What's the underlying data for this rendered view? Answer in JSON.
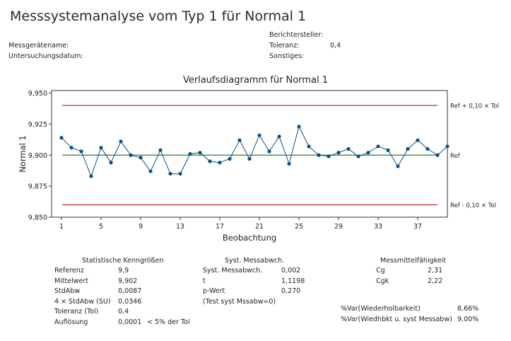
{
  "report": {
    "title": "Messsystemanalyse vom Typ 1 für Normal 1",
    "fields": {
      "messgeraet": "Messgerätename:",
      "datum": "Untersuchungsdatum:",
      "berichtersteller": "Berichtersteller:",
      "toleranz_label": "Toleranz:",
      "toleranz_value": "0,4",
      "sonstiges": "Sonstiges:"
    }
  },
  "chart_data": {
    "type": "line",
    "title": "Verlaufsdiagramm für Normal 1",
    "xlabel": "Beobachtung",
    "ylabel": "Normal 1",
    "xlim": [
      0,
      40
    ],
    "ylim": [
      9.85,
      9.952
    ],
    "x_ticks": [
      1,
      5,
      9,
      13,
      17,
      21,
      25,
      29,
      33,
      37
    ],
    "y_ticks": [
      {
        "value": 9.85,
        "label": "9,850"
      },
      {
        "value": 9.875,
        "label": "9,875"
      },
      {
        "value": 9.9,
        "label": "9,900"
      },
      {
        "value": 9.925,
        "label": "9,925"
      },
      {
        "value": 9.95,
        "label": "9,950"
      }
    ],
    "series": [
      {
        "color": "#0b4f86",
        "values": [
          9.914,
          9.906,
          9.903,
          9.883,
          9.906,
          9.894,
          9.911,
          9.9,
          9.898,
          9.887,
          9.904,
          9.885,
          9.885,
          9.901,
          9.902,
          9.895,
          9.894,
          9.897,
          9.912,
          9.897,
          9.916,
          9.903,
          9.915,
          9.893,
          9.923,
          9.907,
          9.9,
          9.899,
          9.902,
          9.905,
          9.899,
          9.902,
          9.907,
          9.904,
          9.891,
          9.905,
          9.912,
          9.905,
          9.9,
          9.907
        ]
      }
    ],
    "reference_lines": [
      {
        "value": 9.94,
        "label": "Ref + 0,10 × Tol",
        "color": "#b01c1c"
      },
      {
        "value": 9.9,
        "label": "Ref",
        "color": "#2e7d2e"
      },
      {
        "value": 9.86,
        "label": "Ref - 0,10 × Tol",
        "color": "#b01c1c"
      }
    ],
    "grid": false
  },
  "stats": {
    "title": "Statistische Kenngrößen",
    "rows": [
      {
        "label": "Referenz",
        "value": "9,9",
        "note": ""
      },
      {
        "label": "Mittelwert",
        "value": "9,902",
        "note": ""
      },
      {
        "label": "StdAbw",
        "value": "0,0087",
        "note": ""
      },
      {
        "label": "4 × StdAbw (SU)",
        "value": "0,0346",
        "note": ""
      },
      {
        "label": "Toleranz (Tol)",
        "value": "0,4",
        "note": ""
      },
      {
        "label": "Auflösung",
        "value": "0,0001",
        "note": "< 5% der Tol"
      }
    ]
  },
  "bias": {
    "title": "Syst. Messabwch.",
    "rows": [
      {
        "label": "Syst. Messabwch.",
        "value": "0,002"
      },
      {
        "label": "t",
        "value": "1,1198"
      },
      {
        "label": "p-Wert",
        "value": "0,270"
      },
      {
        "label": "(Test syst Mssabw=0)",
        "value": ""
      }
    ]
  },
  "capability": {
    "title": "Messmittelfähigkeit",
    "rows": [
      {
        "label": "Cg",
        "value": "2,31"
      },
      {
        "label": "Cgk",
        "value": "2,22"
      }
    ],
    "var_rows": [
      {
        "label": "%Var(Wiederholbarkeit)",
        "value": "8,66%"
      },
      {
        "label": "%Var(Wiedhbkt u. syst Messabw)",
        "value": "9,00%"
      }
    ]
  }
}
